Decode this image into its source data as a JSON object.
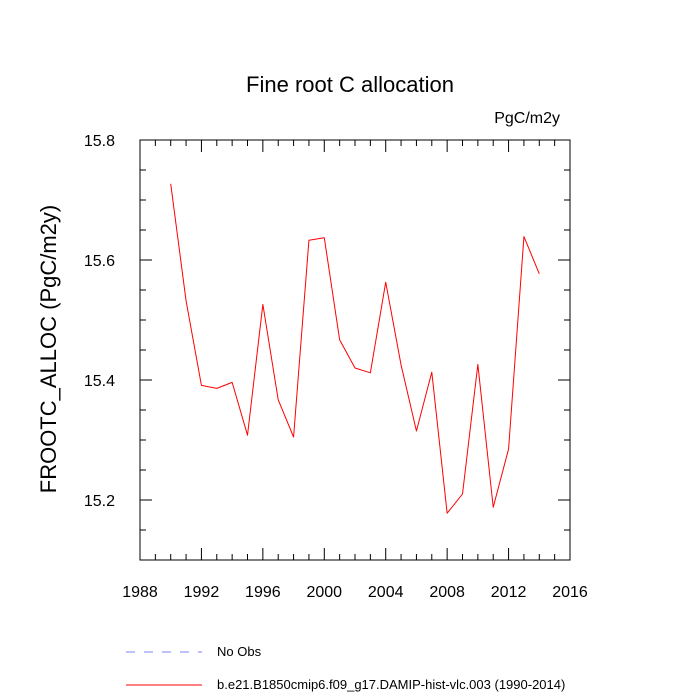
{
  "chart_data": {
    "type": "line",
    "title": "Fine root C allocation",
    "units": "PgC/m2y",
    "xlabel": "",
    "ylabel": "FROOTC_ALLOC  (PgC/m2y)",
    "xlim": [
      1988,
      2016
    ],
    "ylim": [
      15.1,
      15.8
    ],
    "xticks": [
      1988,
      1992,
      1996,
      2000,
      2004,
      2008,
      2012,
      2016
    ],
    "xtick_labels": [
      "1988",
      "1992",
      "1996",
      "2000",
      "2004",
      "2008",
      "2012",
      "2016"
    ],
    "xminor_step": 1,
    "yticks": [
      15.2,
      15.4,
      15.6,
      15.8
    ],
    "ytick_labels": [
      "15.2",
      "15.4",
      "15.6",
      "15.8"
    ],
    "yminor_step": 0.05,
    "x": [
      1990,
      1991,
      1992,
      1993,
      1994,
      1995,
      1996,
      1997,
      1998,
      1999,
      2000,
      2001,
      2002,
      2003,
      2004,
      2005,
      2006,
      2007,
      2008,
      2009,
      2010,
      2011,
      2012,
      2013,
      2014
    ],
    "series": [
      {
        "name": "b.e21.B1850cmip6.f09_g17.DAMIP-hist-vlc.003 (1990-2014)",
        "color": "#ff0000",
        "dash": "solid",
        "values": [
          15.727,
          15.532,
          15.391,
          15.386,
          15.396,
          15.308,
          15.526,
          15.367,
          15.305,
          15.633,
          15.637,
          15.467,
          15.42,
          15.412,
          15.563,
          15.425,
          15.315,
          15.413,
          15.178,
          15.21,
          15.426,
          15.188,
          15.285,
          15.639,
          15.577
        ]
      }
    ],
    "legend": [
      {
        "label": "No Obs",
        "color": "#8080ff",
        "dash": "dashed"
      },
      {
        "label": "b.e21.B1850cmip6.f09_g17.DAMIP-hist-vlc.003 (1990-2014)",
        "color": "#ff0000",
        "dash": "solid"
      }
    ],
    "legend_position": "bottom-left",
    "grid": false
  }
}
